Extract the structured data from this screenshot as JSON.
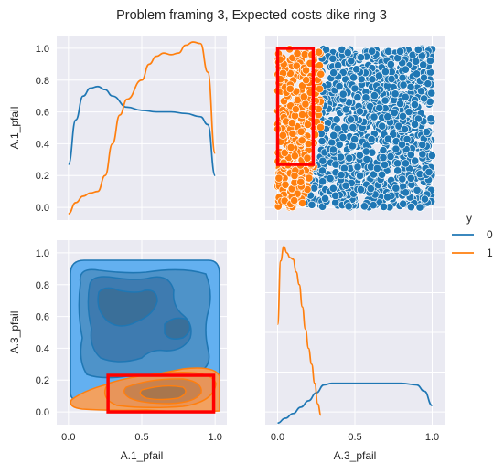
{
  "title": "Problem framing 3, Expected costs dike ring 3",
  "colors": {
    "panel_bg": "#eaeaf2",
    "grid": "#ffffff",
    "class0": "#1f77b4",
    "class1": "#ff7f0e",
    "class0_fill_light": "#63b0f0",
    "box": "#ff0000"
  },
  "legend": {
    "title": "y",
    "entries": [
      {
        "label": "0",
        "color": "#1f77b4"
      },
      {
        "label": "1",
        "color": "#ff7f0e"
      }
    ]
  },
  "chart_data": {
    "type": "pairplot",
    "variables": [
      "A.1_pfail",
      "A.3_pfail"
    ],
    "hue": "y",
    "x_ticks": [
      "0.0",
      "0.5",
      "1.0"
    ],
    "y_ticks": [
      "0.0",
      "0.2",
      "0.4",
      "0.6",
      "0.8",
      "1.0"
    ],
    "xlim": [
      -0.08,
      1.08
    ],
    "ylim": [
      -0.08,
      1.08
    ],
    "panels": [
      {
        "id": "kde-a1",
        "type": "line",
        "xlabel": "",
        "ylabel": "A.1_pfail",
        "series": [
          {
            "name": "0",
            "x": [
              0.0,
              0.05,
              0.1,
              0.15,
              0.2,
              0.25,
              0.3,
              0.4,
              0.5,
              0.6,
              0.7,
              0.8,
              0.9,
              0.95,
              1.0
            ],
            "y": [
              0.27,
              0.55,
              0.7,
              0.75,
              0.76,
              0.74,
              0.7,
              0.63,
              0.61,
              0.6,
              0.6,
              0.59,
              0.57,
              0.52,
              0.2
            ]
          },
          {
            "name": "1",
            "x": [
              0.0,
              0.05,
              0.1,
              0.15,
              0.2,
              0.25,
              0.3,
              0.35,
              0.4,
              0.5,
              0.55,
              0.6,
              0.65,
              0.7,
              0.75,
              0.8,
              0.85,
              0.9,
              0.95,
              1.0
            ],
            "y": [
              -0.04,
              0.03,
              0.07,
              0.09,
              0.1,
              0.2,
              0.4,
              0.58,
              0.68,
              0.8,
              0.9,
              0.95,
              0.97,
              0.96,
              0.97,
              1.02,
              1.04,
              1.03,
              0.85,
              0.34
            ]
          }
        ]
      },
      {
        "id": "scatter",
        "type": "scatter",
        "xlabel": "",
        "ylabel": "",
        "description_boundary_A3": 0.28,
        "box": {
          "x0": 0.0,
          "x1": 0.23,
          "y0": 0.27,
          "y1": 1.0
        }
      },
      {
        "id": "kde2d",
        "type": "contour",
        "xlabel": "A.1_pfail",
        "ylabel": "A.3_pfail",
        "box": {
          "x0": 0.27,
          "x1": 0.99,
          "y0": 0.0,
          "y1": 0.23
        }
      },
      {
        "id": "kde-a3",
        "type": "line",
        "xlabel": "A.3_pfail",
        "ylabel": "",
        "series": [
          {
            "name": "0",
            "x": [
              0.0,
              0.05,
              0.1,
              0.15,
              0.2,
              0.25,
              0.3,
              0.35,
              0.4,
              0.5,
              0.6,
              0.7,
              0.8,
              0.9,
              0.95,
              1.0
            ],
            "y": [
              -0.07,
              -0.04,
              -0.01,
              0.03,
              0.07,
              0.12,
              0.17,
              0.18,
              0.18,
              0.18,
              0.18,
              0.18,
              0.18,
              0.17,
              0.13,
              0.04
            ]
          },
          {
            "name": "1",
            "x": [
              0.0,
              0.02,
              0.04,
              0.06,
              0.08,
              0.1,
              0.12,
              0.14,
              0.16,
              0.18,
              0.2,
              0.22,
              0.24,
              0.26,
              0.28
            ],
            "y": [
              0.55,
              0.95,
              1.04,
              1.0,
              0.97,
              0.96,
              0.88,
              0.8,
              0.66,
              0.52,
              0.4,
              0.3,
              0.18,
              0.05,
              -0.02
            ]
          }
        ]
      }
    ]
  }
}
